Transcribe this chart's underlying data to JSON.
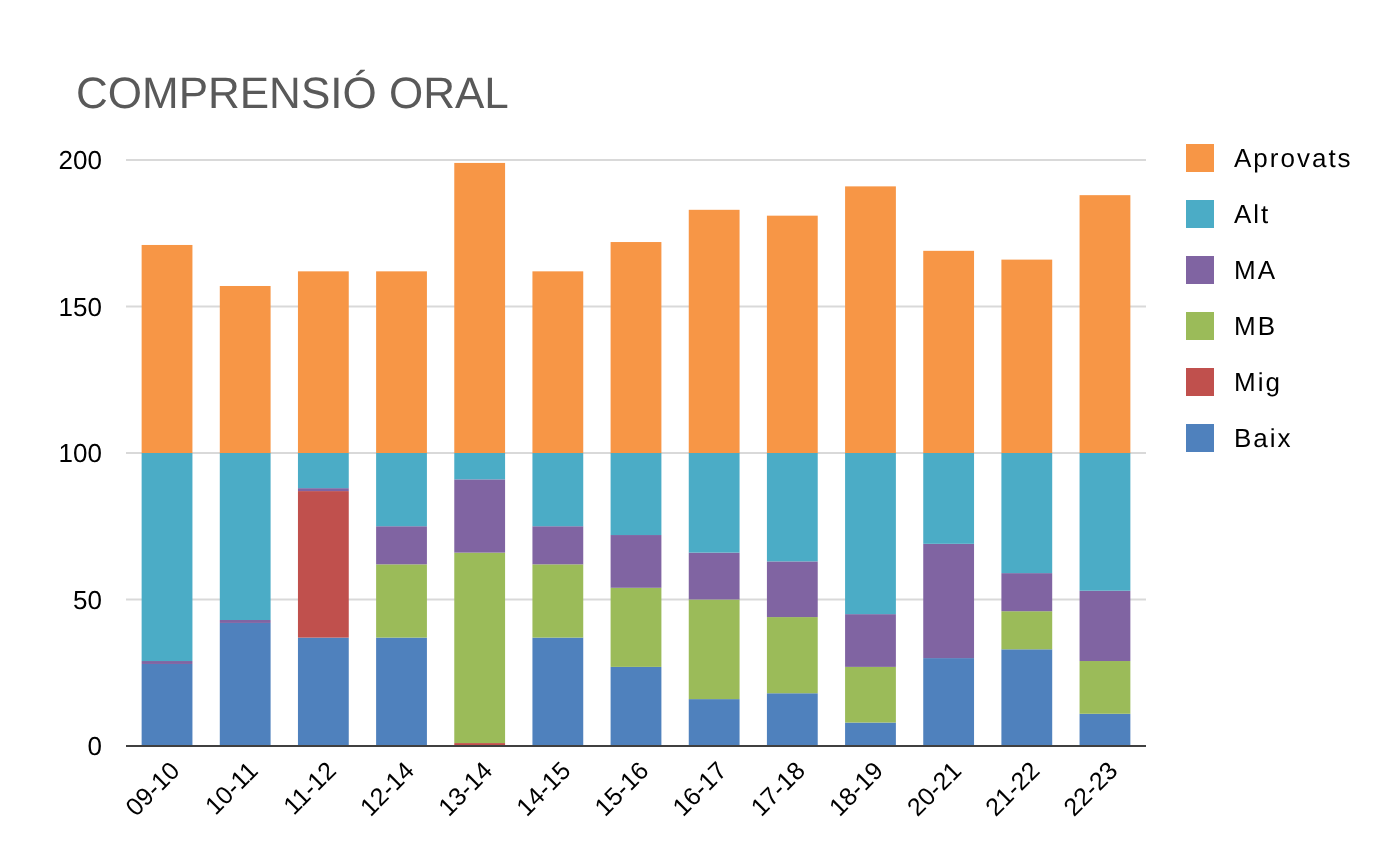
{
  "chart_data": {
    "type": "bar",
    "stacked": true,
    "title": "COMPRENSIÓ ORAL",
    "categories": [
      "09-10",
      "10-11",
      "11-12",
      "12-14",
      "13-14",
      "14-15",
      "15-16",
      "16-17",
      "17-18",
      "18-19",
      "20-21",
      "21-22",
      "22-23"
    ],
    "series": [
      {
        "name": "Baix",
        "color": "#4f81bd",
        "values": [
          28,
          42,
          37,
          37,
          0,
          37,
          27,
          16,
          18,
          8,
          30,
          33,
          11
        ]
      },
      {
        "name": "Mig",
        "color": "#c0504d",
        "values": [
          0,
          0,
          50,
          0,
          1,
          0,
          0,
          0,
          0,
          0,
          0,
          0,
          0
        ]
      },
      {
        "name": "MB",
        "color": "#9bbb59",
        "values": [
          0,
          0,
          0,
          25,
          65,
          25,
          27,
          34,
          26,
          19,
          0,
          13,
          18
        ]
      },
      {
        "name": "MA",
        "color": "#8064a2",
        "values": [
          1,
          1,
          1,
          13,
          25,
          13,
          18,
          16,
          19,
          18,
          39,
          13,
          24
        ]
      },
      {
        "name": "Alt",
        "color": "#4bacc6",
        "values": [
          71,
          57,
          12,
          25,
          9,
          25,
          28,
          34,
          37,
          55,
          31,
          41,
          47
        ]
      },
      {
        "name": "Aprovats",
        "color": "#f79646",
        "values": [
          71,
          57,
          62,
          62,
          99,
          62,
          72,
          83,
          81,
          91,
          69,
          66,
          88
        ]
      }
    ],
    "ylim": [
      0,
      200
    ],
    "yticks": [
      0,
      50,
      100,
      150,
      200
    ],
    "grid": "y",
    "legend": "right"
  }
}
